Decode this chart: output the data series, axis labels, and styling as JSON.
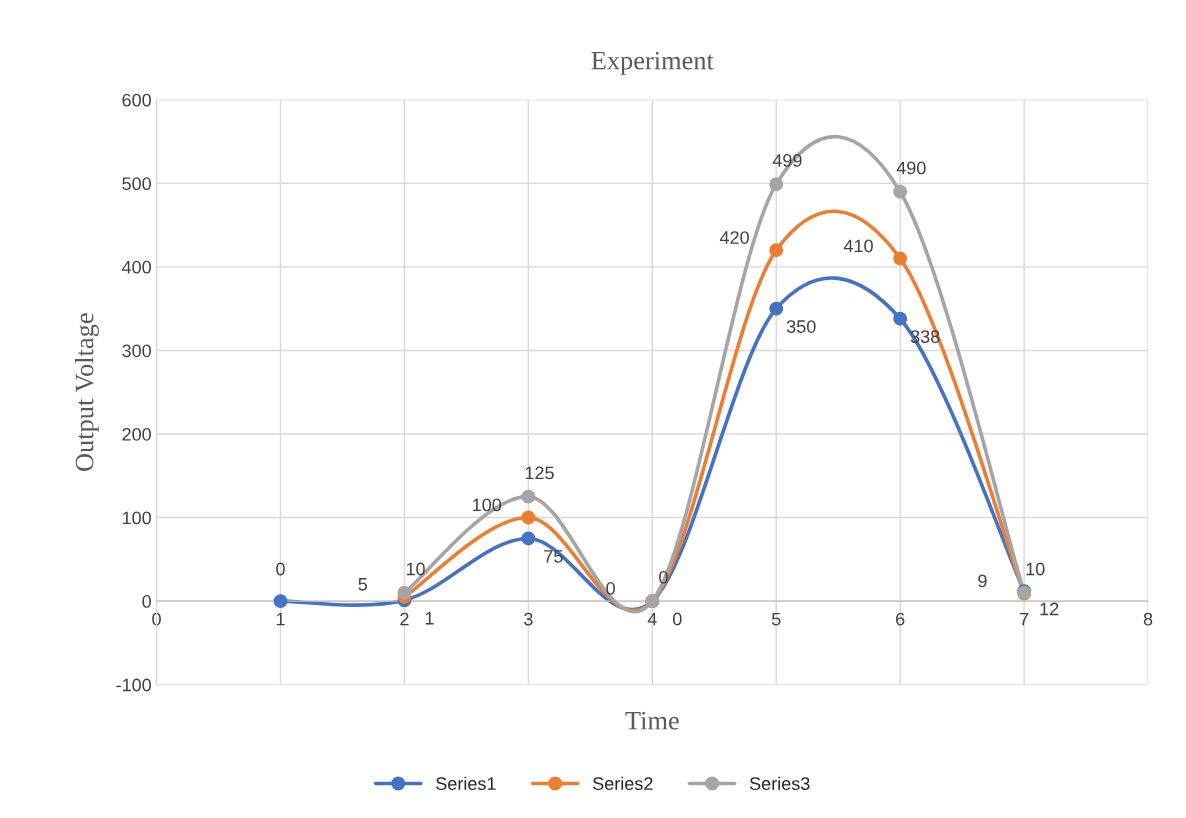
{
  "chart_data": {
    "type": "line",
    "title": "Experiment",
    "xlabel": "Time",
    "ylabel": "Output Voltage",
    "x": [
      1,
      2,
      3,
      4,
      5,
      6,
      7
    ],
    "series": [
      {
        "name": "Series1",
        "color": "#4472c4",
        "values": [
          0,
          1,
          75,
          0,
          350,
          338,
          12
        ]
      },
      {
        "name": "Series2",
        "color": "#ed7d31",
        "values": [
          null,
          5,
          100,
          0,
          420,
          410,
          9
        ]
      },
      {
        "name": "Series3",
        "color": "#a5a5a5",
        "values": [
          null,
          10,
          125,
          0,
          499,
          490,
          10
        ]
      }
    ],
    "xlim": [
      0,
      8
    ],
    "xticks": [
      0,
      1,
      2,
      3,
      4,
      5,
      6,
      7,
      8
    ],
    "ylim": [
      -100,
      600
    ],
    "yticks": [
      -100,
      0,
      100,
      200,
      300,
      400,
      500,
      600
    ],
    "grid": true,
    "legend": "bottom",
    "marker": "circle",
    "line_style": "solid",
    "data_labels": true
  }
}
